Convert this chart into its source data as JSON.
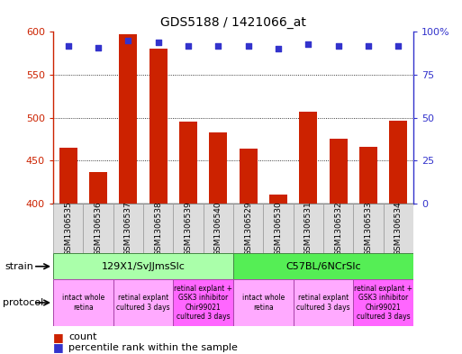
{
  "title": "GDS5188 / 1421066_at",
  "samples": [
    "GSM1306535",
    "GSM1306536",
    "GSM1306537",
    "GSM1306538",
    "GSM1306539",
    "GSM1306540",
    "GSM1306529",
    "GSM1306530",
    "GSM1306531",
    "GSM1306532",
    "GSM1306533",
    "GSM1306534"
  ],
  "counts": [
    465,
    437,
    597,
    580,
    495,
    483,
    464,
    410,
    507,
    475,
    466,
    496
  ],
  "percentiles": [
    92,
    91,
    95,
    94,
    92,
    92,
    92,
    90,
    93,
    92,
    92,
    92
  ],
  "ylim_left": [
    400,
    600
  ],
  "ylim_right": [
    0,
    100
  ],
  "yticks_left": [
    400,
    450,
    500,
    550,
    600
  ],
  "yticks_right": [
    0,
    25,
    50,
    75,
    100
  ],
  "bar_color": "#cc2200",
  "dot_color": "#3333cc",
  "strain_groups": [
    {
      "label": "129X1/SvJJmsSlc",
      "start": 0,
      "end": 5,
      "color": "#aaffaa"
    },
    {
      "label": "C57BL/6NCrSlc",
      "start": 6,
      "end": 11,
      "color": "#55ee55"
    }
  ],
  "protocol_groups": [
    {
      "label": "intact whole\nretina",
      "start": 0,
      "end": 1,
      "color": "#ffaaff"
    },
    {
      "label": "retinal explant\ncultured 3 days",
      "start": 2,
      "end": 3,
      "color": "#ffaaff"
    },
    {
      "label": "retinal explant +\nGSK3 inhibitor\nChir99021\ncultured 3 days",
      "start": 4,
      "end": 5,
      "color": "#ff66ff"
    },
    {
      "label": "intact whole\nretina",
      "start": 6,
      "end": 7,
      "color": "#ffaaff"
    },
    {
      "label": "retinal explant\ncultured 3 days",
      "start": 8,
      "end": 9,
      "color": "#ffaaff"
    },
    {
      "label": "retinal explant +\nGSK3 inhibitor\nChir99021\ncultured 3 days",
      "start": 10,
      "end": 11,
      "color": "#ff66ff"
    }
  ],
  "legend_count_color": "#cc2200",
  "legend_dot_color": "#3333cc",
  "tick_label_color_left": "#cc2200",
  "tick_label_color_right": "#3333cc",
  "sample_box_color": "#dddddd",
  "sample_box_edge": "#999999"
}
